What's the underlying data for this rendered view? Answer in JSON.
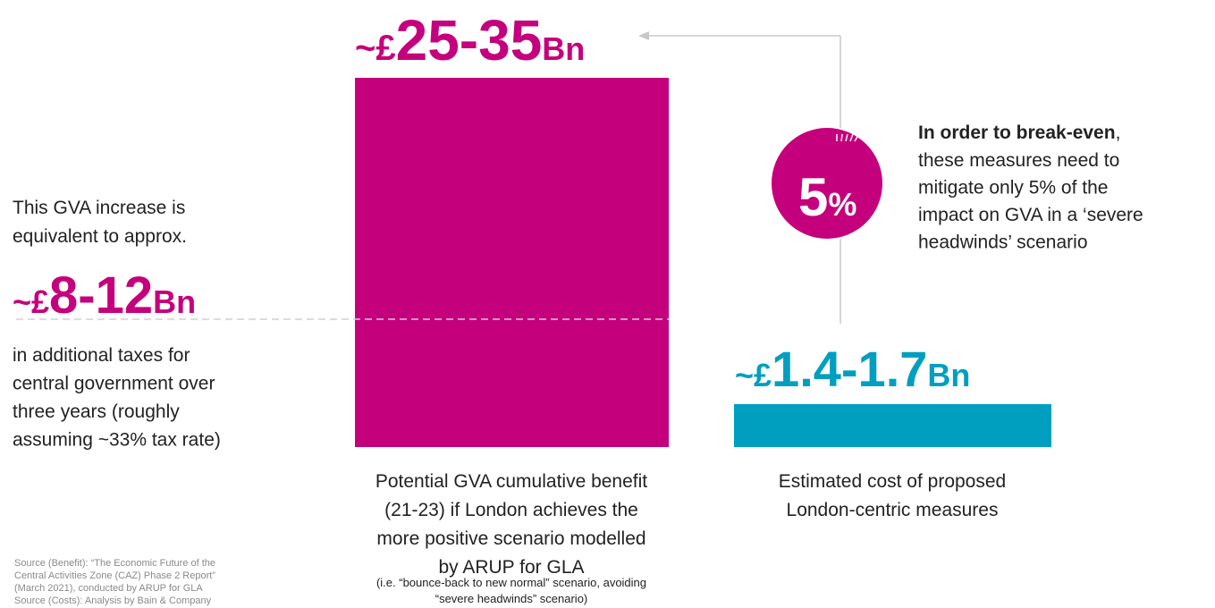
{
  "benefit": {
    "prefix": "~£",
    "number": "25-35",
    "unit": "Bn",
    "caption_lines": [
      "Potential GVA cumulative benefit",
      "(21-23) if London achieves the",
      "more positive scenario modelled",
      "by ARUP for GLA"
    ],
    "note_lines": [
      "(i.e. “bounce-back to new normal” scenario, avoiding",
      "“severe headwinds” scenario)"
    ]
  },
  "taxes": {
    "intro_lines": [
      "This GVA increase is",
      "equivalent to approx."
    ],
    "prefix": "~£",
    "number": "8-12",
    "unit": "Bn",
    "detail_lines": [
      "in additional taxes for",
      "central government over",
      "three years (roughly",
      "assuming ~33% tax rate)"
    ]
  },
  "breakeven": {
    "number": "5",
    "unit": "%",
    "bold": "In order to break-even",
    "bold_rest": ",",
    "lines": [
      "these measures need to",
      "mitigate only 5% of the",
      "impact on GVA in a ‘severe",
      "headwinds’ scenario"
    ]
  },
  "cost": {
    "prefix": "~£",
    "number": "1.4-1.7",
    "unit": "Bn",
    "caption_lines": [
      "Estimated cost of proposed",
      "London-centric measures"
    ]
  },
  "sources": [
    "Source (Benefit): “The Economic Future of the",
    "Central Activities Zone (CAZ) Phase 2 Report”",
    "(March 2021), conducted by ARUP for GLA",
    "Source (Costs): Analysis by Bain & Company"
  ]
}
